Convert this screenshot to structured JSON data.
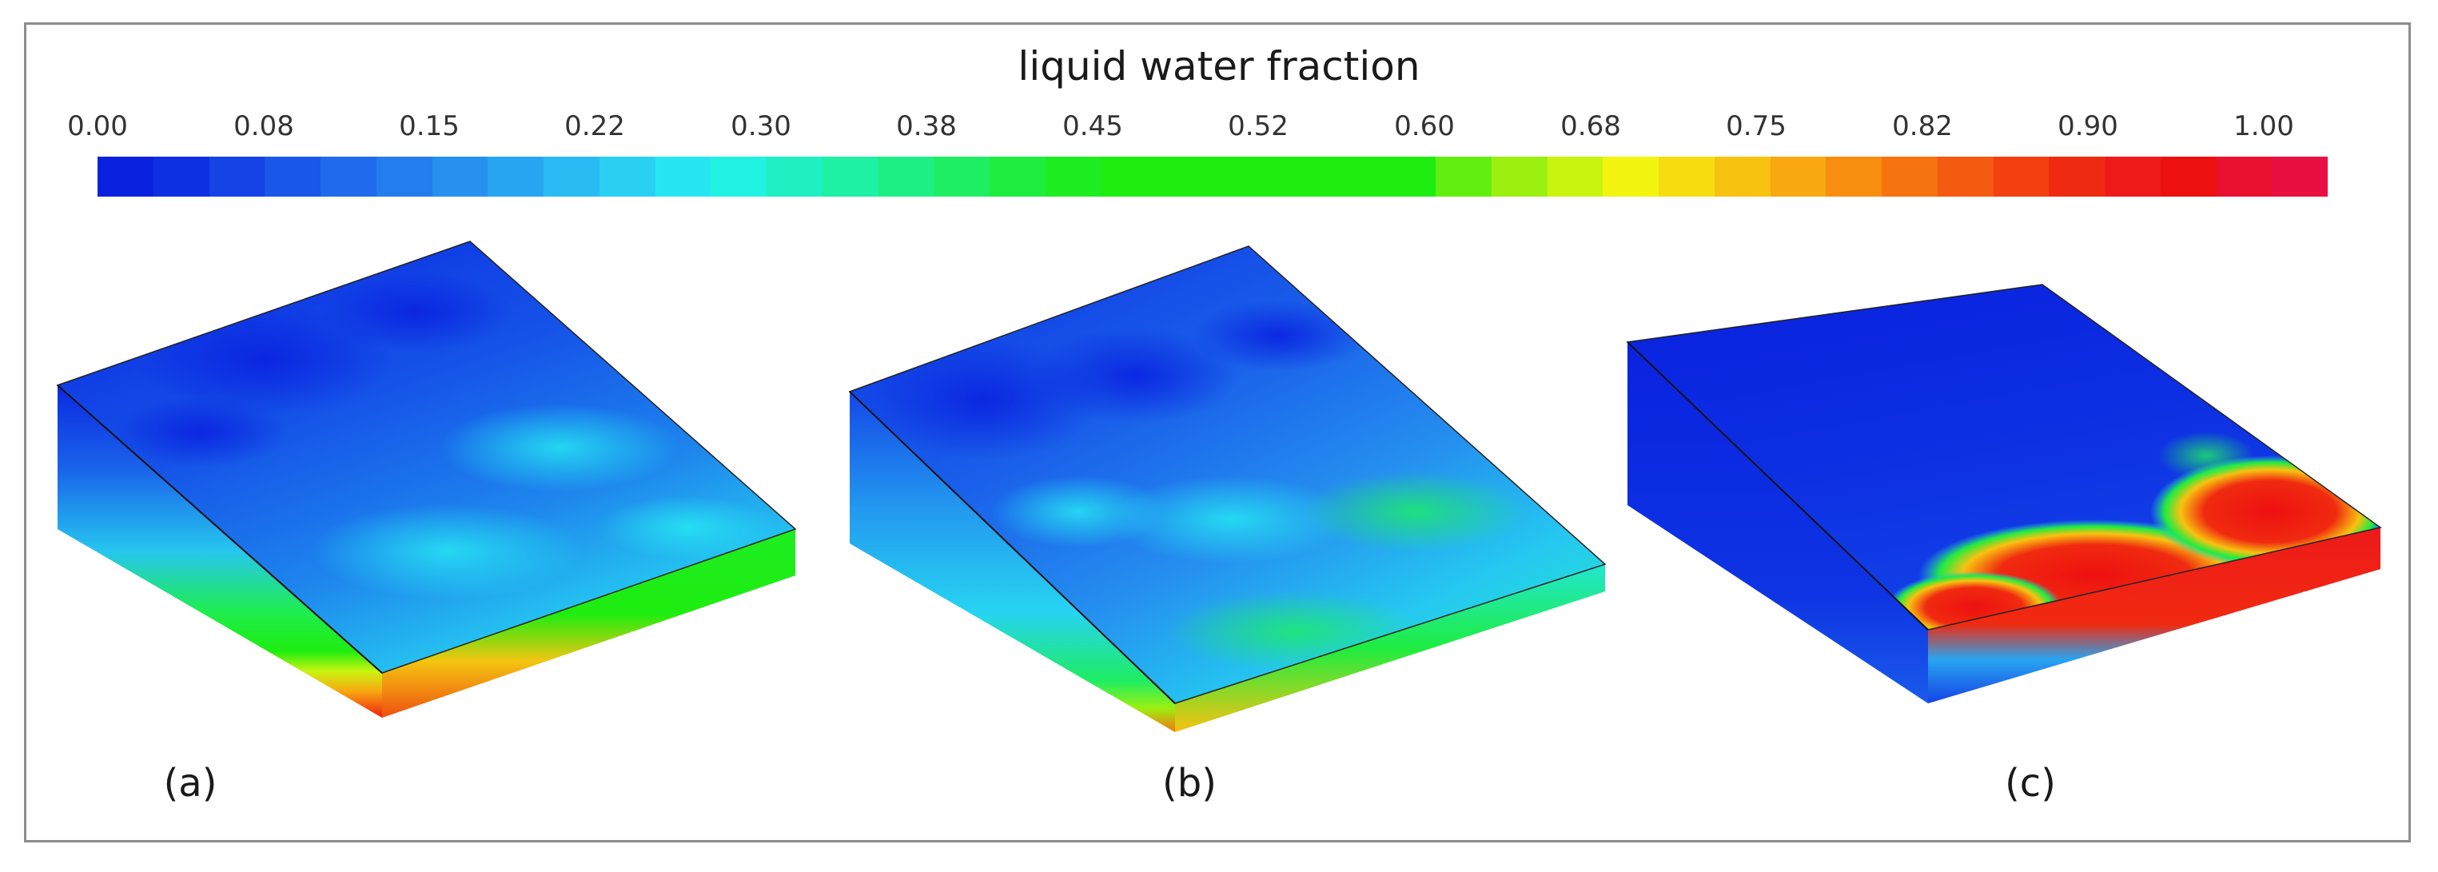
{
  "colorbar": {
    "title": "liquid water fraction",
    "ticks": [
      "0.00",
      "0.08",
      "0.15",
      "0.22",
      "0.30",
      "0.38",
      "0.45",
      "0.52",
      "0.60",
      "0.68",
      "0.75",
      "0.82",
      "0.90",
      "1.00"
    ],
    "colors": [
      "#0a22e0",
      "#0f2fe3",
      "#1543e6",
      "#1a57ea",
      "#1f6aed",
      "#237dee",
      "#2691ef",
      "#28a5f0",
      "#29bbf1",
      "#29d0f2",
      "#26e6f3",
      "#22f2e2",
      "#1ef0c4",
      "#1ef0a4",
      "#1eef84",
      "#1eee62",
      "#1eed40",
      "#1eed22",
      "#1eed10",
      "#1eed10",
      "#1eed10",
      "#1eed10",
      "#1eed10",
      "#1eed10",
      "#62ee10",
      "#9bf010",
      "#c9f410",
      "#f3f510",
      "#f7dc10",
      "#f8c210",
      "#f8a810",
      "#f78e10",
      "#f67410",
      "#f45a10",
      "#f24010",
      "#f02a10",
      "#ee1a1a",
      "#ec1010",
      "#ea1030",
      "#e81040"
    ]
  },
  "panels": [
    {
      "id": "a",
      "label": "(a)"
    },
    {
      "id": "b",
      "label": "(b)"
    },
    {
      "id": "c",
      "label": "(c)"
    }
  ]
}
